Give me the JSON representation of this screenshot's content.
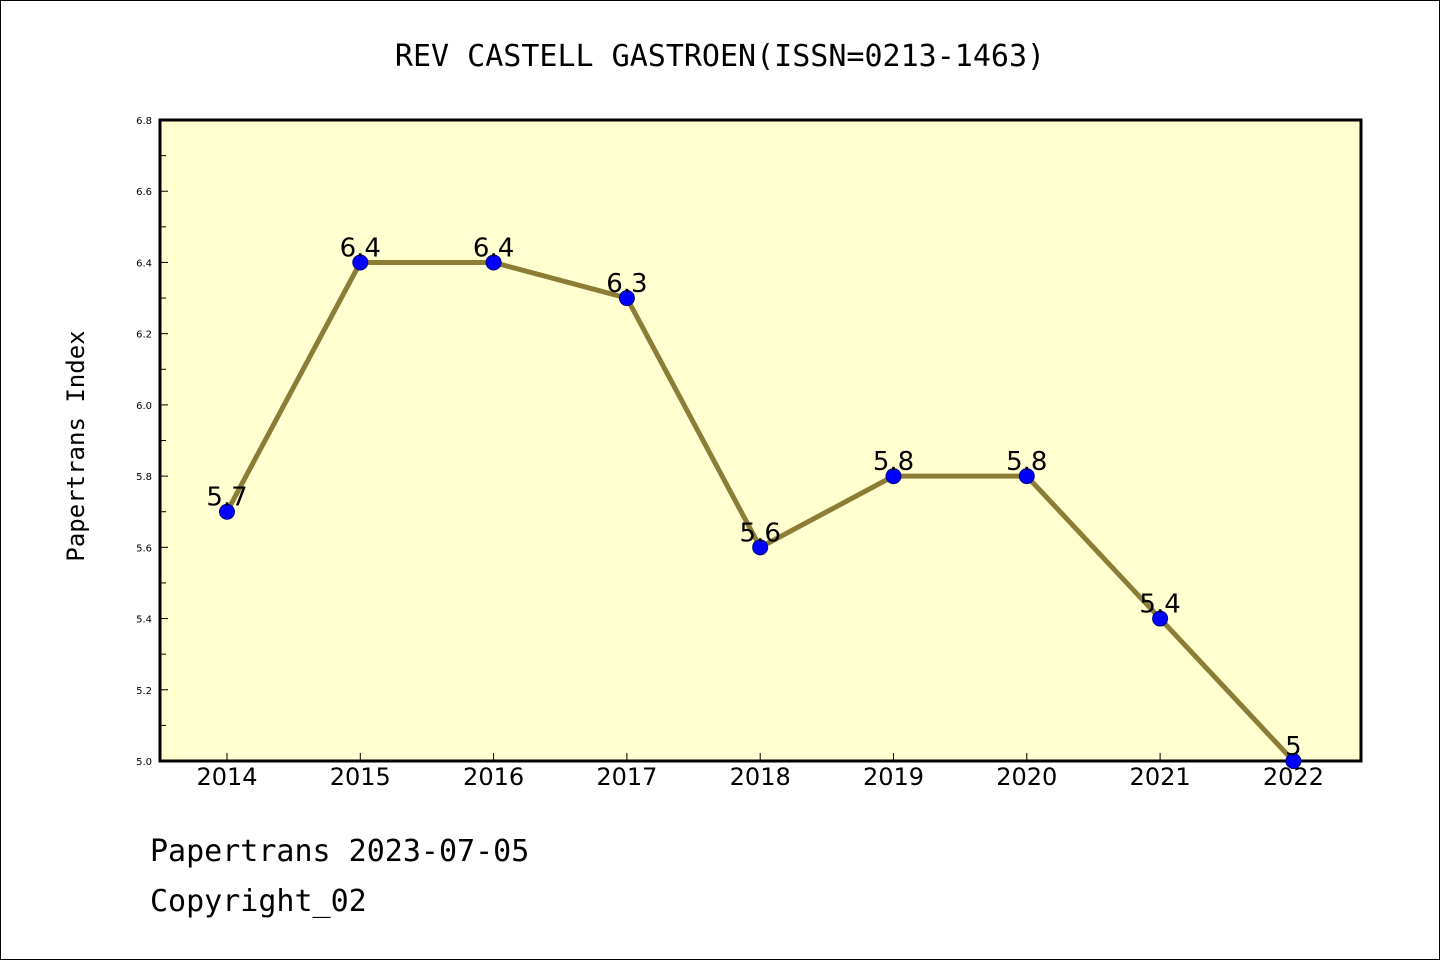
{
  "chart_data": {
    "type": "line",
    "title": "REV CASTELL GASTROEN(ISSN=0213-1463)",
    "xlabel": "",
    "ylabel": "Papertrans Index",
    "categories": [
      "2014",
      "2015",
      "2016",
      "2017",
      "2018",
      "2019",
      "2020",
      "2021",
      "2022"
    ],
    "values": [
      5.7,
      6.4,
      6.4,
      6.3,
      5.6,
      5.8,
      5.8,
      5.4,
      5.0
    ],
    "data_labels": [
      "5.7",
      "6.4",
      "6.4",
      "6.3",
      "5.6",
      "5.8",
      "5.8",
      "5.4",
      "5"
    ],
    "ylim": [
      5.0,
      6.8
    ],
    "yticks": [
      "5.0",
      "5.2",
      "5.4",
      "5.6",
      "5.8",
      "6.0",
      "6.2",
      "6.4",
      "6.6",
      "6.8"
    ],
    "grid": false,
    "legend": "none",
    "colors": {
      "plot_background": "#ffffd0",
      "line": "#8b7d35",
      "marker": "#0000ff"
    }
  },
  "footer": {
    "line1": "Papertrans 2023-07-05",
    "line2": "Copyright_02"
  }
}
